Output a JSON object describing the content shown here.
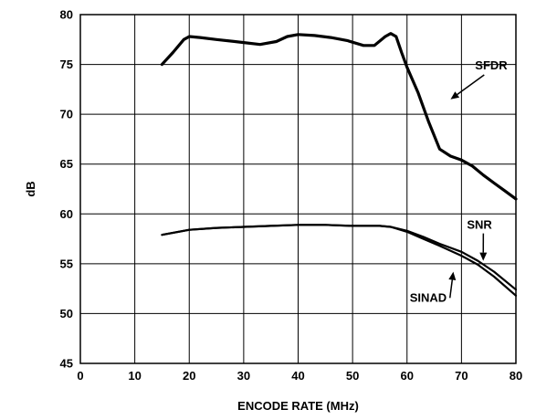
{
  "chart_data": {
    "type": "line",
    "xlabel": "ENCODE RATE (MHz)",
    "ylabel": "dB",
    "xlim": [
      0,
      80
    ],
    "ylim": [
      45,
      80
    ],
    "xticks": [
      "0",
      "10",
      "20",
      "30",
      "40",
      "50",
      "60",
      "70",
      "80"
    ],
    "yticks": [
      "45",
      "50",
      "55",
      "60",
      "65",
      "70",
      "75",
      "80"
    ],
    "grid": true,
    "series": [
      {
        "name": "SFDR",
        "x": [
          15,
          17,
          19,
          20,
          22,
          25,
          30,
          33,
          36,
          38,
          40,
          43,
          46,
          49,
          52,
          54,
          56,
          57,
          58,
          59,
          60,
          62,
          64,
          66,
          68,
          70,
          72,
          74,
          76,
          78,
          80
        ],
        "y": [
          75.0,
          76.2,
          77.5,
          77.8,
          77.7,
          77.5,
          77.2,
          77.0,
          77.3,
          77.8,
          78.0,
          77.9,
          77.7,
          77.4,
          76.9,
          76.9,
          77.8,
          78.1,
          77.8,
          76.2,
          74.7,
          72.2,
          69.2,
          66.5,
          65.8,
          65.4,
          64.8,
          63.9,
          63.1,
          62.3,
          61.5
        ]
      },
      {
        "name": "SNR",
        "x": [
          15,
          20,
          25,
          30,
          35,
          40,
          45,
          50,
          55,
          57,
          60,
          63,
          66,
          70,
          73,
          76,
          80
        ],
        "y": [
          57.9,
          58.4,
          58.6,
          58.7,
          58.8,
          58.9,
          58.9,
          58.8,
          58.8,
          58.7,
          58.3,
          57.7,
          57.0,
          56.2,
          55.3,
          54.2,
          52.4
        ]
      },
      {
        "name": "SINAD",
        "x": [
          15,
          20,
          25,
          30,
          35,
          40,
          45,
          50,
          55,
          57,
          60,
          63,
          66,
          70,
          73,
          76,
          80
        ],
        "y": [
          57.9,
          58.4,
          58.6,
          58.7,
          58.8,
          58.9,
          58.9,
          58.8,
          58.8,
          58.7,
          58.2,
          57.5,
          56.8,
          55.8,
          54.9,
          53.7,
          51.8
        ]
      }
    ],
    "annotations": [
      {
        "text": "SFDR",
        "x": 72.5,
        "y": 74.5,
        "arrow_to": [
          68.0,
          71.5
        ]
      },
      {
        "text": "SNR",
        "x": 71.0,
        "y": 58.5,
        "arrow_to": [
          74.0,
          55.3
        ]
      },
      {
        "text": "SINAD",
        "x": 60.5,
        "y": 51.2,
        "arrow_to": [
          68.5,
          54.2
        ]
      }
    ]
  }
}
